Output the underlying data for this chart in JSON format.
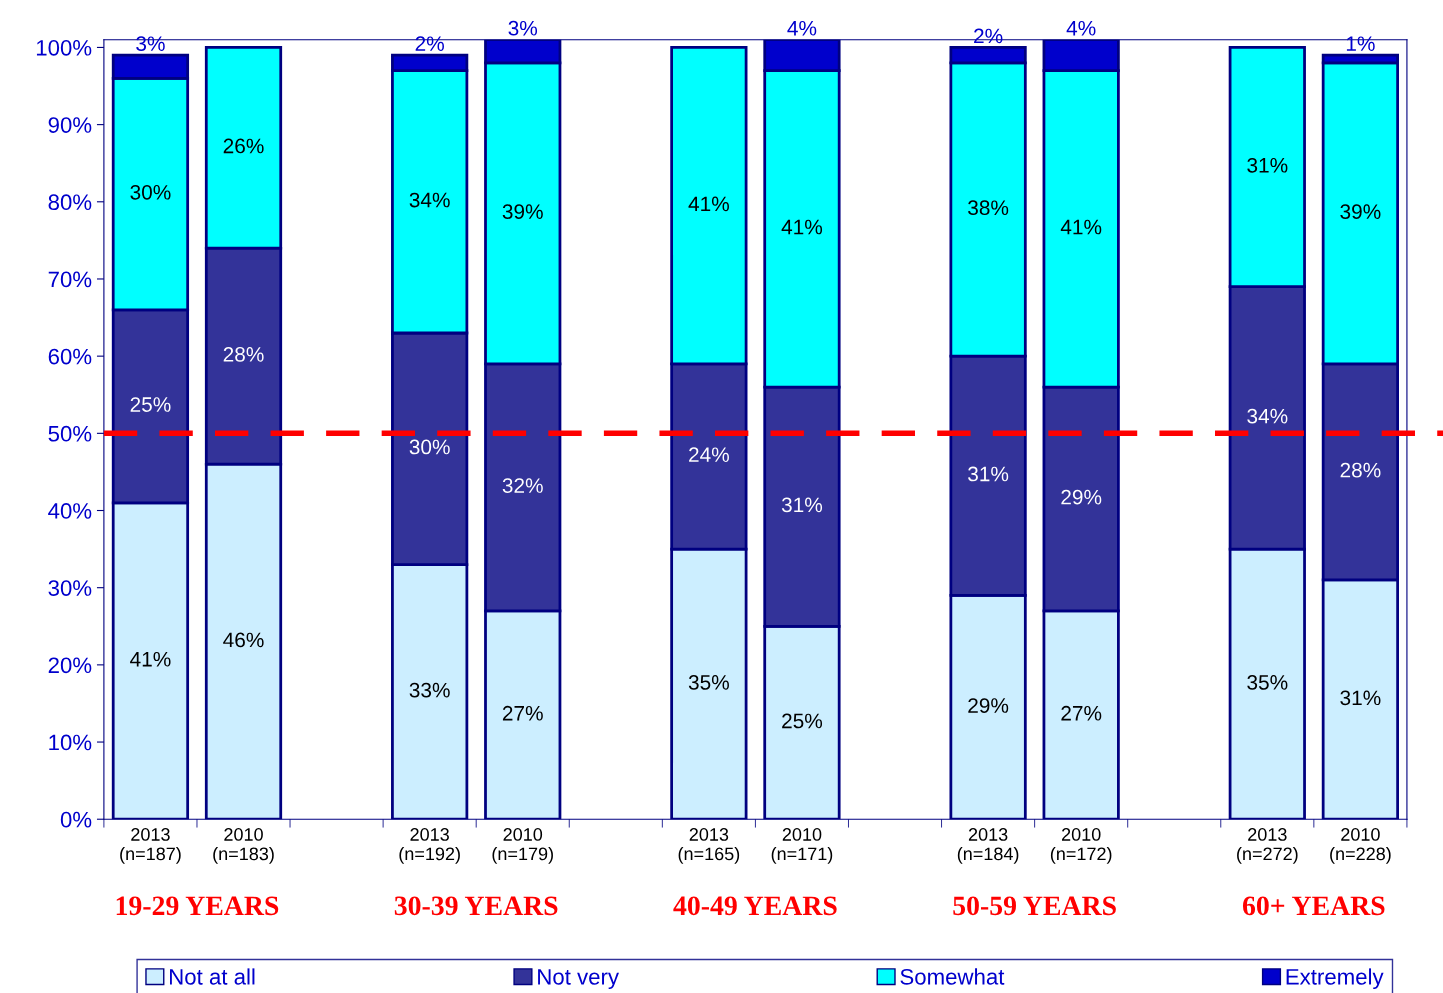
{
  "chart_data": {
    "type": "bar",
    "stacked": true,
    "categories": [
      "2013\n(n=187)",
      "2010\n(n=183)",
      null,
      "2013\n(n=192)",
      "2010\n(n=179)",
      null,
      "2013\n(n=165)",
      "2010\n(n=171)",
      null,
      "2013\n(n=184)",
      "2010\n(n=172)",
      null,
      "2013\n(n=272)",
      "2010\n(n=228)"
    ],
    "series": [
      {
        "name": "Not at all",
        "color": "#cceeff",
        "values": [
          41,
          46,
          null,
          33,
          27,
          null,
          35,
          25,
          null,
          29,
          27,
          null,
          35,
          31
        ],
        "value_labels": [
          "41%",
          "46%",
          null,
          "33%",
          "27%",
          null,
          "35%",
          "25%",
          null,
          "29%",
          "27%",
          null,
          "35%",
          "31%"
        ]
      },
      {
        "name": "Not very",
        "color": "#333399",
        "values": [
          25,
          28,
          null,
          30,
          32,
          null,
          24,
          31,
          null,
          31,
          29,
          null,
          34,
          28
        ],
        "value_labels": [
          "25%",
          "28%",
          null,
          "30%",
          "32%",
          null,
          "24%",
          "31%",
          null,
          "31%",
          "29%",
          null,
          "34%",
          "28%"
        ]
      },
      {
        "name": "Somewhat",
        "color": "#00ffff",
        "values": [
          30,
          26,
          null,
          34,
          39,
          null,
          41,
          41,
          null,
          38,
          41,
          null,
          31,
          39
        ],
        "value_labels": [
          "30%",
          "26%",
          null,
          "34%",
          "39%",
          null,
          "41%",
          "41%",
          null,
          "38%",
          "41%",
          null,
          "31%",
          "39%"
        ]
      },
      {
        "name": "Extremely",
        "color": "#0000cc",
        "values": [
          3,
          null,
          null,
          2,
          3,
          null,
          null,
          4,
          null,
          2,
          4,
          null,
          null,
          1
        ],
        "value_labels": [
          "3%",
          null,
          null,
          "2%",
          "3%",
          null,
          null,
          "4%",
          null,
          "2%",
          "4%",
          null,
          null,
          "1%"
        ]
      }
    ],
    "ylim": [
      0,
      101
    ],
    "yticks": [
      {
        "value": 0,
        "label": "0%"
      },
      {
        "value": 10,
        "label": "10%"
      },
      {
        "value": 20,
        "label": "20%"
      },
      {
        "value": 30,
        "label": "30%"
      },
      {
        "value": 40,
        "label": "40%"
      },
      {
        "value": 50,
        "label": "50%"
      },
      {
        "value": 60,
        "label": "60%"
      },
      {
        "value": 70,
        "label": "70%"
      },
      {
        "value": 80,
        "label": "80%"
      },
      {
        "value": 90,
        "label": "90%"
      },
      {
        "value": 100,
        "label": "100%"
      }
    ],
    "ref_lines": [
      {
        "axis": "y",
        "value": 50,
        "color": "#ff0000",
        "line_style": "dashed"
      }
    ],
    "annotations": [
      "19-29 YEARS",
      "30-39 YEARS",
      "40-49 YEARS",
      "50-59 YEARS",
      "60+ YEARS"
    ],
    "grid": false,
    "legend": "bottom"
  }
}
